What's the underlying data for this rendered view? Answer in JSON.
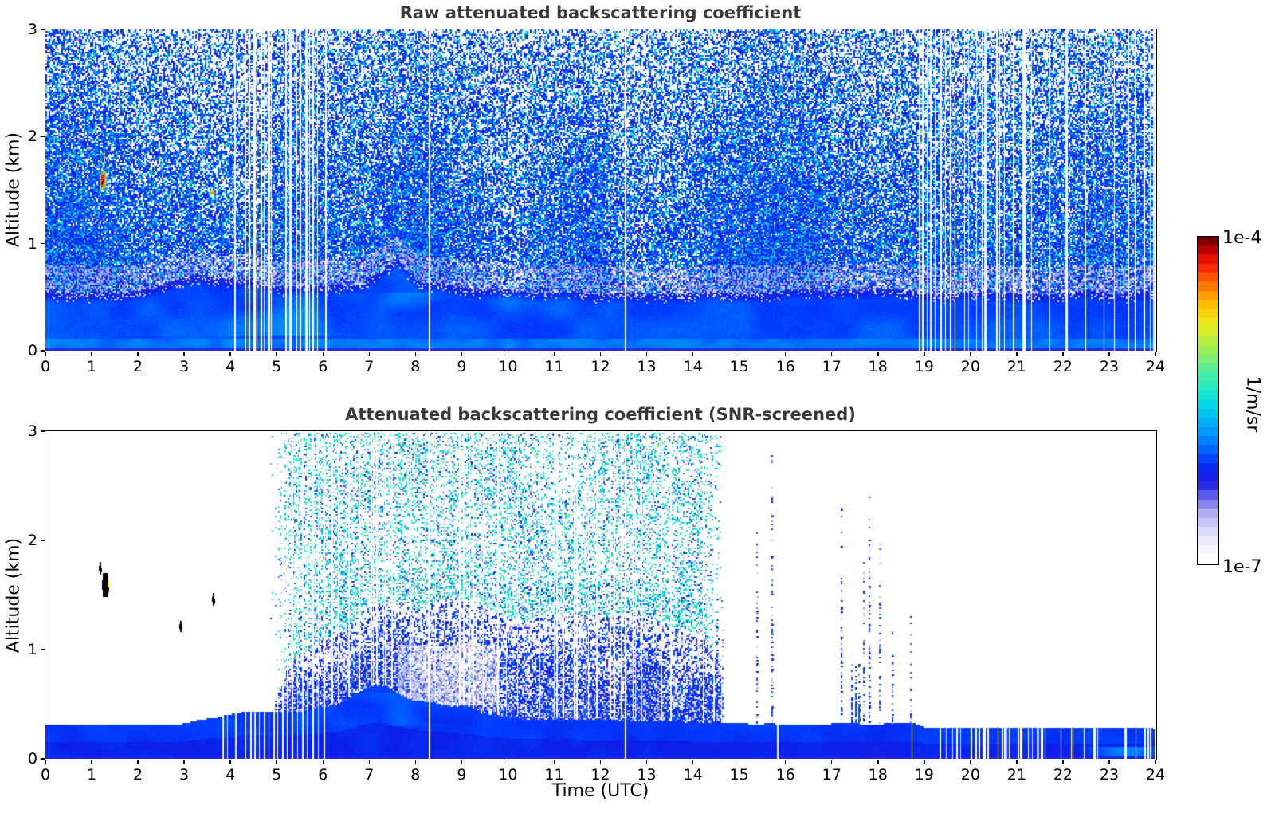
{
  "colorbar": {
    "unit": "1/m/sr",
    "max_label": "1e-4",
    "min_label": "1e-7",
    "orientation": "vertical",
    "scale": "log",
    "segments": 36,
    "stops": [
      [
        0,
        "#ffffff"
      ],
      [
        0.05,
        "#eeeefc"
      ],
      [
        0.1,
        "#d4d4f9"
      ],
      [
        0.15,
        "#a8a8f2"
      ],
      [
        0.19,
        "#6a6aec"
      ],
      [
        0.23,
        "#2a2ae4"
      ],
      [
        0.27,
        "#0c1ee8"
      ],
      [
        0.31,
        "#0040ff"
      ],
      [
        0.37,
        "#0080ff"
      ],
      [
        0.43,
        "#00b0f4"
      ],
      [
        0.49,
        "#00dce4"
      ],
      [
        0.55,
        "#2ceebe"
      ],
      [
        0.61,
        "#67ee85"
      ],
      [
        0.67,
        "#abee48"
      ],
      [
        0.73,
        "#e6ee20"
      ],
      [
        0.79,
        "#ffc600"
      ],
      [
        0.85,
        "#ff8400"
      ],
      [
        0.9,
        "#ff3c00"
      ],
      [
        0.945,
        "#e60e00"
      ],
      [
        0.975,
        "#b00000"
      ],
      [
        1,
        "#7c0000"
      ]
    ]
  },
  "chart_data": [
    {
      "type": "heatmap",
      "title": "Raw attenuated backscattering coefficient",
      "xlabel": "",
      "ylabel": "Altitude (km)",
      "xlim": [
        0,
        24
      ],
      "ylim": [
        0,
        3
      ],
      "xticks": [
        0,
        1,
        2,
        3,
        4,
        5,
        6,
        7,
        8,
        9,
        10,
        11,
        12,
        13,
        14,
        15,
        16,
        17,
        18,
        19,
        20,
        21,
        22,
        23,
        24
      ],
      "yticks": [
        0,
        1,
        2,
        3
      ],
      "value_range": [
        "1e-7",
        "1e-4"
      ],
      "surface_layer_top_km": [
        [
          0,
          0.55
        ],
        [
          1.5,
          0.56
        ],
        [
          2.5,
          0.62
        ],
        [
          3.2,
          0.7
        ],
        [
          4,
          0.66
        ],
        [
          5,
          0.62
        ],
        [
          6,
          0.6
        ],
        [
          6.8,
          0.62
        ],
        [
          7.6,
          0.85
        ],
        [
          8.1,
          0.66
        ],
        [
          9,
          0.6
        ],
        [
          10,
          0.58
        ],
        [
          11,
          0.56
        ],
        [
          12.5,
          0.55
        ],
        [
          14,
          0.55
        ],
        [
          16,
          0.56
        ],
        [
          18,
          0.57
        ],
        [
          19.5,
          0.55
        ],
        [
          21,
          0.55
        ],
        [
          22.5,
          0.55
        ],
        [
          24,
          0.56
        ]
      ],
      "hotspots": [
        {
          "t": 1.22,
          "h": 1.6,
          "rx": 0.08,
          "ry": 0.1,
          "peak": 1
        },
        {
          "t": 3.58,
          "h": 1.48,
          "rx": 0.03,
          "ry": 0.03,
          "peak": 0.9
        }
      ],
      "gaps": [
        [
          4.08,
          2
        ],
        [
          4.33,
          1
        ],
        [
          4.4,
          2
        ],
        [
          4.5,
          3
        ],
        [
          4.57,
          1
        ],
        [
          4.65,
          2
        ],
        [
          4.72,
          1
        ],
        [
          4.8,
          3
        ],
        [
          4.88,
          1
        ],
        [
          5.18,
          2
        ],
        [
          5.28,
          3
        ],
        [
          5.42,
          1
        ],
        [
          5.5,
          2
        ],
        [
          5.62,
          3
        ],
        [
          5.7,
          1
        ],
        [
          5.78,
          2
        ],
        [
          5.88,
          1
        ],
        [
          6.05,
          2
        ],
        [
          8.28,
          2
        ],
        [
          12.52,
          2
        ],
        [
          18.88,
          2
        ],
        [
          18.96,
          2
        ],
        [
          19.05,
          1
        ],
        [
          19.13,
          2
        ],
        [
          19.22,
          1
        ],
        [
          19.35,
          2
        ],
        [
          19.45,
          1
        ],
        [
          19.55,
          2
        ],
        [
          19.65,
          1
        ],
        [
          19.95,
          1
        ],
        [
          20.12,
          1
        ],
        [
          20.3,
          2
        ],
        [
          20.55,
          2
        ],
        [
          20.72,
          1
        ],
        [
          21.15,
          2
        ],
        [
          21.32,
          1
        ],
        [
          21.7,
          1
        ],
        [
          22.05,
          1
        ],
        [
          22.48,
          1
        ],
        [
          22.88,
          1
        ],
        [
          23.1,
          1
        ],
        [
          23.42,
          1
        ],
        [
          23.55,
          1
        ],
        [
          23.75,
          2
        ],
        [
          23.88,
          1
        ]
      ],
      "gap_ranges": [
        {
          "range": [
            19.7,
            21.1
          ],
          "count": 5,
          "mode": "full"
        },
        {
          "range": [
            21.1,
            24
          ],
          "count": 4,
          "mode": "full"
        }
      ]
    },
    {
      "type": "heatmap",
      "title": "Attenuated backscattering coefficient (SNR-screened)",
      "xlabel": "Time (UTC)",
      "ylabel": "Altitude (km)",
      "xlim": [
        0,
        24
      ],
      "ylim": [
        0,
        3
      ],
      "xticks": [
        0,
        1,
        2,
        3,
        4,
        5,
        6,
        7,
        8,
        9,
        10,
        11,
        12,
        13,
        14,
        15,
        16,
        17,
        18,
        19,
        20,
        21,
        22,
        23,
        24
      ],
      "yticks": [
        0,
        1,
        2,
        3
      ],
      "value_range": [
        "1e-7",
        "1e-4"
      ],
      "band_top_km": [
        [
          0,
          0.32
        ],
        [
          2.8,
          0.32
        ],
        [
          3.3,
          0.36
        ],
        [
          4,
          0.41
        ],
        [
          4.4,
          0.44
        ],
        [
          5.5,
          0.44
        ],
        [
          6.3,
          0.5
        ],
        [
          6.8,
          0.62
        ],
        [
          7.1,
          0.68
        ],
        [
          7.4,
          0.66
        ],
        [
          7.8,
          0.56
        ],
        [
          8.6,
          0.5
        ],
        [
          9.2,
          0.47
        ],
        [
          9.6,
          0.4
        ],
        [
          10.5,
          0.37
        ],
        [
          12,
          0.36
        ],
        [
          14,
          0.34
        ],
        [
          14.6,
          0.33
        ],
        [
          18.8,
          0.33
        ],
        [
          19,
          0.29
        ],
        [
          24,
          0.29
        ]
      ],
      "cloud_t_range": [
        4.9,
        14.6
      ],
      "cloud_top_km": [
        [
          4.9,
          0.5
        ],
        [
          5.3,
          0.9
        ],
        [
          6,
          1.1
        ],
        [
          6.5,
          1.2
        ],
        [
          7.2,
          1.45
        ],
        [
          8,
          1.35
        ],
        [
          8.8,
          1.5
        ],
        [
          9.5,
          1.4
        ],
        [
          10.2,
          1.25
        ],
        [
          11,
          1.35
        ],
        [
          12,
          1.3
        ],
        [
          12.8,
          1.35
        ],
        [
          13.6,
          1.2
        ],
        [
          14.2,
          1.15
        ],
        [
          14.6,
          0.9
        ]
      ],
      "speckle_t_range": [
        4.85,
        14.65
      ],
      "columns": [
        {
          "t": 14.22,
          "h_max": 1.5
        },
        {
          "t": 14.5,
          "h_max": 1.6
        },
        {
          "t": 14.62,
          "h_max": 1.2
        },
        {
          "t": 15.36,
          "h_max": 2.1
        },
        {
          "t": 15.7,
          "h_max": 2.9
        },
        {
          "t": 17.2,
          "h_max": 2.3
        },
        {
          "t": 17.42,
          "h_max": 0.9,
          "dense": true
        },
        {
          "t": 17.5,
          "h_max": 0.85,
          "dense": true
        },
        {
          "t": 17.58,
          "h_max": 0.9,
          "dense": true
        },
        {
          "t": 17.68,
          "h_max": 1.8
        },
        {
          "t": 17.8,
          "h_max": 2.4
        },
        {
          "t": 18.02,
          "h_max": 2
        },
        {
          "t": 18.3,
          "h_max": 1.2
        },
        {
          "t": 18.7,
          "h_max": 1.35
        }
      ],
      "black_marks": [
        {
          "t": 1.18,
          "w": 0.03,
          "h0": 1.68,
          "h1": 1.8
        },
        {
          "t": 1.24,
          "w": 0.12,
          "h0": 1.48,
          "h1": 1.7,
          "fleck": "#ffdd00"
        },
        {
          "t": 2.92,
          "w": 0.03,
          "h0": 1.16,
          "h1": 1.26
        },
        {
          "t": 3.62,
          "w": 0.04,
          "h0": 1.4,
          "h1": 1.52
        }
      ],
      "gaps": [
        [
          3.83,
          2
        ],
        [
          3.92,
          1
        ],
        [
          4.1,
          2
        ],
        [
          4.33,
          1
        ],
        [
          4.43,
          2
        ],
        [
          4.52,
          2
        ],
        [
          4.62,
          1
        ],
        [
          4.72,
          2
        ],
        [
          4.82,
          1
        ],
        [
          4.92,
          2
        ],
        [
          5.02,
          1
        ],
        [
          5.12,
          2
        ],
        [
          5.22,
          1
        ],
        [
          5.32,
          2
        ],
        [
          5.45,
          1
        ],
        [
          5.55,
          2
        ],
        [
          5.65,
          1
        ],
        [
          5.78,
          2
        ],
        [
          5.9,
          1
        ],
        [
          6.02,
          2
        ],
        [
          8.28,
          2
        ],
        [
          12.52,
          2
        ],
        [
          15.82,
          2
        ],
        [
          18.72,
          1
        ]
      ],
      "gap_ranges": [
        {
          "range": [
            6.1,
            14.6
          ],
          "count": 46,
          "mode": "above"
        },
        {
          "range": [
            18.85,
            21.6
          ],
          "count": 34,
          "mode": "full"
        },
        {
          "range": [
            21.6,
            23.2
          ],
          "count": 8,
          "mode": "full"
        },
        {
          "range": [
            23.3,
            24
          ],
          "count": 6,
          "mode": "full"
        }
      ]
    }
  ]
}
